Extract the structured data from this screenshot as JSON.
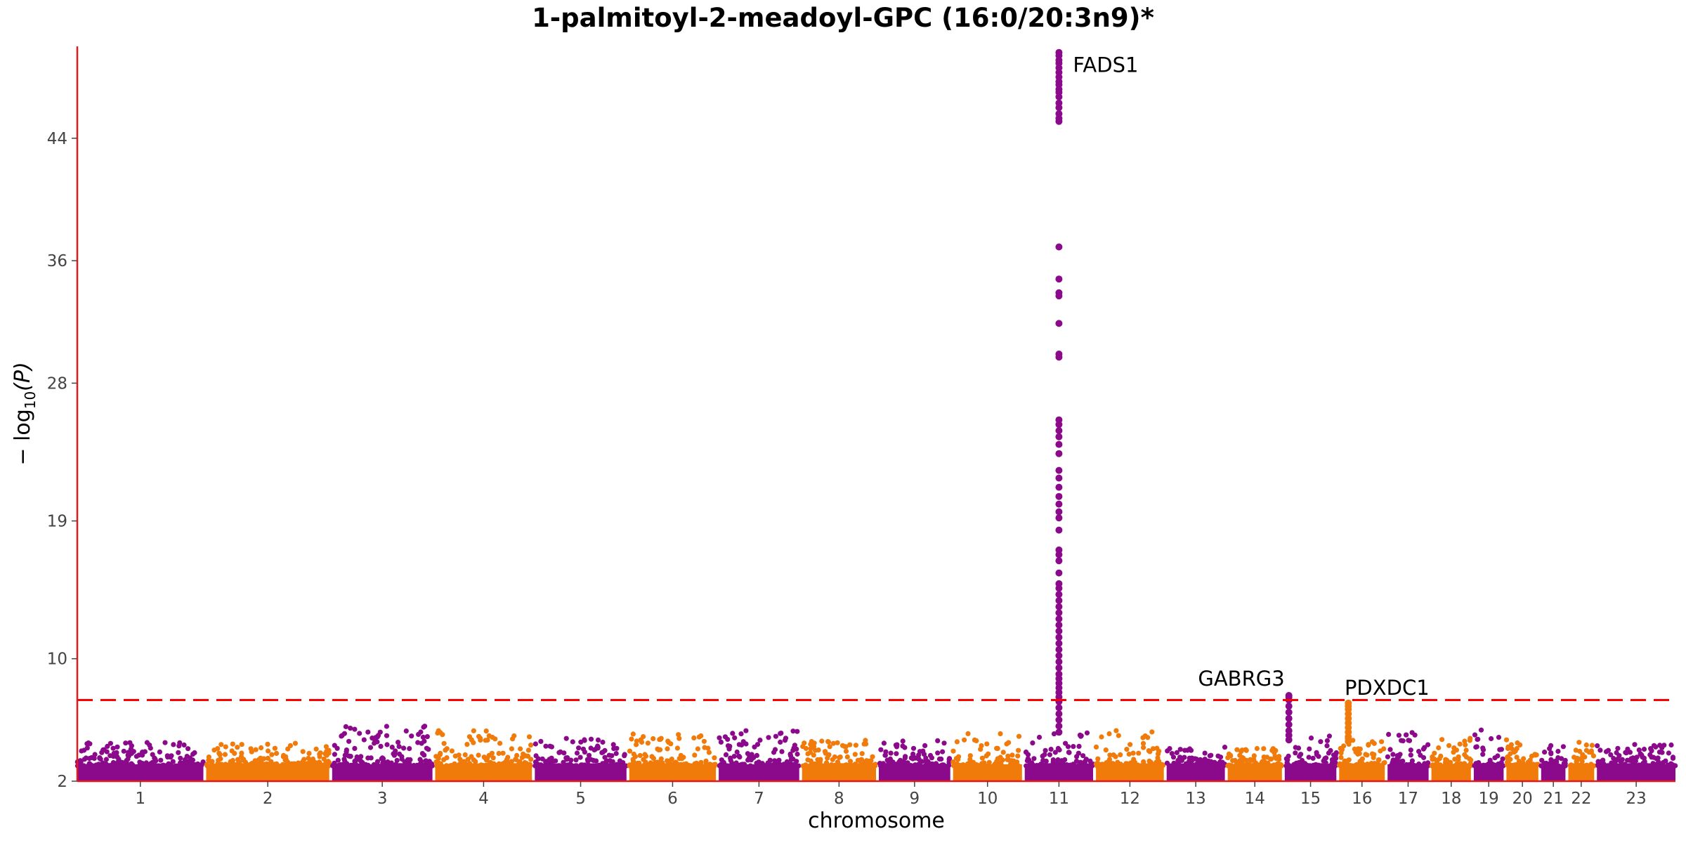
{
  "chart_data": {
    "type": "scatter",
    "title": "1-palmitoyl-2-meadoyl-GPC (16:0/20:3n9)*",
    "xlabel": "chromosome",
    "ylabel": "−log10(P)",
    "ylabel_base": "− log",
    "ylabel_sub": "10",
    "ylabel_arg": "(P)",
    "ylim": [
      2,
      50
    ],
    "yticks": [
      2,
      10,
      19,
      28,
      36,
      44
    ],
    "significance_threshold": 7.3,
    "colors": {
      "odd": "#8b0a8b",
      "even": "#f07b0a",
      "axis": "#e31a1c",
      "threshold": "#ff0000"
    },
    "chromosomes": [
      {
        "label": "1",
        "length": 249
      },
      {
        "label": "2",
        "length": 243
      },
      {
        "label": "3",
        "length": 198
      },
      {
        "label": "4",
        "length": 191
      },
      {
        "label": "5",
        "length": 181
      },
      {
        "label": "6",
        "length": 171
      },
      {
        "label": "7",
        "length": 159
      },
      {
        "label": "8",
        "length": 146
      },
      {
        "label": "9",
        "length": 141
      },
      {
        "label": "10",
        "length": 136
      },
      {
        "label": "11",
        "length": 135
      },
      {
        "label": "12",
        "length": 134
      },
      {
        "label": "13",
        "length": 115
      },
      {
        "label": "14",
        "length": 107
      },
      {
        "label": "15",
        "length": 102
      },
      {
        "label": "16",
        "length": 90
      },
      {
        "label": "17",
        "length": 81
      },
      {
        "label": "18",
        "length": 78
      },
      {
        "label": "19",
        "length": 59
      },
      {
        "label": "20",
        "length": 63
      },
      {
        "label": "21",
        "length": 48
      },
      {
        "label": "22",
        "length": 51
      },
      {
        "label": "23",
        "length": 155
      }
    ],
    "background_max": [
      4.6,
      4.5,
      5.6,
      5.3,
      4.8,
      5.1,
      5.4,
      4.7,
      4.7,
      5.2,
      5.3,
      5.3,
      4.3,
      4.2,
      5.0,
      4.8,
      5.2,
      4.8,
      5.4,
      4.9,
      4.4,
      4.7,
      4.4
    ],
    "peaks": [
      {
        "label": "FADS1",
        "chr": "11",
        "pos": 0.5,
        "values": [
          49.6,
          49.4,
          49.1,
          48.9,
          48.6,
          48.3,
          48.0,
          47.7,
          47.5,
          47.2,
          47.0,
          46.7,
          46.3,
          46.0,
          45.6,
          45.3,
          45.1,
          36.9,
          34.8,
          33.9,
          33.7,
          31.9,
          29.9,
          29.7,
          25.6,
          25.3,
          24.9,
          24.5,
          24.0,
          23.4,
          22.3,
          21.8,
          21.2,
          20.6,
          20.1,
          19.6,
          19.2,
          18.4,
          17.1,
          16.8,
          16.4,
          15.6,
          14.9,
          14.6,
          14.2,
          13.8,
          13.4,
          13.0,
          12.6,
          12.2,
          11.8,
          11.4,
          11.0,
          10.6,
          10.2,
          9.8,
          9.4,
          9.0,
          8.7,
          8.4,
          8.1,
          7.8,
          7.5,
          7.2,
          6.8,
          6.4,
          6.0,
          5.6,
          5.2
        ]
      },
      {
        "label": "GABRG3",
        "chr": "15",
        "pos": 0.08,
        "values": [
          7.6,
          7.5,
          7.3,
          6.9,
          6.5,
          6.1,
          5.7,
          5.3,
          5.0,
          4.7
        ]
      },
      {
        "label": "PDXDC1",
        "chr": "16",
        "pos": 0.2,
        "values": [
          7.1,
          6.9,
          6.7,
          6.4,
          6.1,
          5.8,
          5.5,
          5.2,
          4.9,
          4.6
        ]
      }
    ]
  }
}
